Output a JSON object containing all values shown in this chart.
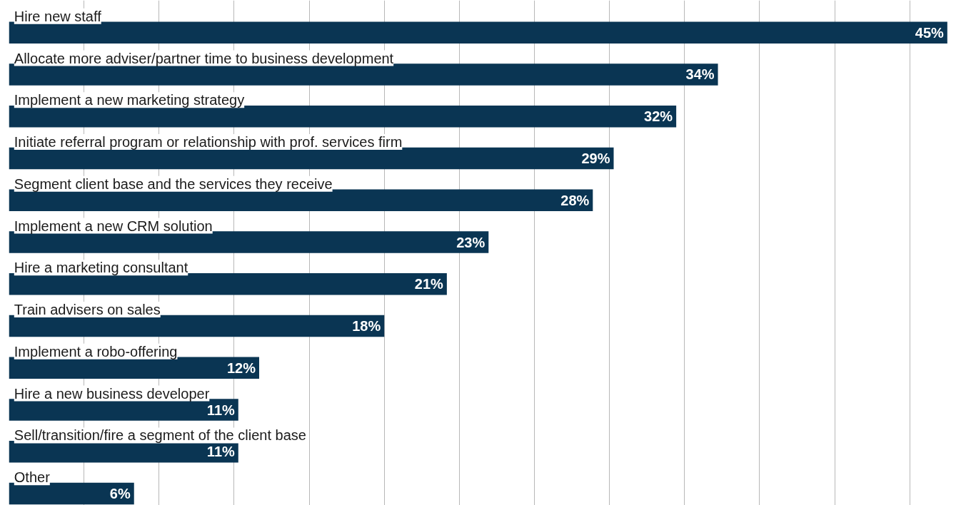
{
  "chart_data": {
    "type": "bar",
    "orientation": "horizontal",
    "categories": [
      "Hire new staff",
      "Allocate more adviser/partner time to business development",
      "Implement a new marketing strategy",
      "Initiate referral program or relationship with prof. services firm",
      "Segment client base and the services they receive",
      "Implement a new CRM solution",
      "Hire a marketing consultant",
      "Train advisers on sales",
      "Implement a robo-offering",
      "Hire a new business developer",
      "Sell/transition/fire a segment of the client base",
      "Other"
    ],
    "values": [
      45,
      34,
      32,
      29,
      28,
      23,
      21,
      18,
      12,
      11,
      11,
      6
    ],
    "value_labels": [
      "45%",
      "34%",
      "32%",
      "29%",
      "28%",
      "23%",
      "21%",
      "18%",
      "12%",
      "11%",
      "11%",
      "6%"
    ],
    "color": "#0a3553",
    "xticks": [
      {
        "value": 3.6,
        "label": null
      },
      {
        "value": 7.2,
        "label": null
      },
      {
        "value": 10.8,
        "label": null
      },
      {
        "value": 14.4,
        "label": null
      },
      {
        "value": 18,
        "label": null
      },
      {
        "value": 21.6,
        "label": null
      },
      {
        "value": 25.2,
        "label": null
      },
      {
        "value": 28.8,
        "label": null
      },
      {
        "value": 32.4,
        "label": null
      },
      {
        "value": 36,
        "label": null
      },
      {
        "value": 39.6,
        "label": null
      },
      {
        "value": 43.2,
        "label": null
      }
    ],
    "grid": "x",
    "tick_labels": false
  }
}
